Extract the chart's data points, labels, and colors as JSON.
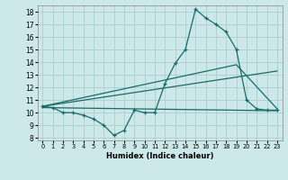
{
  "title": "",
  "xlabel": "Humidex (Indice chaleur)",
  "ylabel": "",
  "xlim": [
    -0.5,
    23.5
  ],
  "ylim": [
    7.8,
    18.5
  ],
  "xticks": [
    0,
    1,
    2,
    3,
    4,
    5,
    6,
    7,
    8,
    9,
    10,
    11,
    12,
    13,
    14,
    15,
    16,
    17,
    18,
    19,
    20,
    21,
    22,
    23
  ],
  "yticks": [
    8,
    9,
    10,
    11,
    12,
    13,
    14,
    15,
    16,
    17,
    18
  ],
  "bg_color": "#cce8e8",
  "grid_color": "#aacfcf",
  "line_color": "#1a6b6b",
  "line1_x": [
    0,
    1,
    2,
    3,
    4,
    5,
    6,
    7,
    8,
    9,
    10,
    11,
    12,
    13,
    14,
    15,
    16,
    17,
    18,
    19,
    20,
    21,
    22,
    23
  ],
  "line1_y": [
    10.5,
    10.4,
    10.0,
    10.0,
    9.8,
    9.5,
    9.0,
    8.2,
    8.6,
    10.2,
    10.0,
    10.0,
    12.3,
    13.9,
    15.0,
    18.2,
    17.5,
    17.0,
    16.4,
    15.0,
    11.0,
    10.3,
    10.2,
    10.2
  ],
  "line2_x": [
    0,
    19,
    23
  ],
  "line2_y": [
    10.5,
    13.8,
    10.3
  ],
  "line3_x": [
    0,
    23
  ],
  "line3_y": [
    10.5,
    13.3
  ],
  "line4_x": [
    0,
    23
  ],
  "line4_y": [
    10.4,
    10.15
  ]
}
